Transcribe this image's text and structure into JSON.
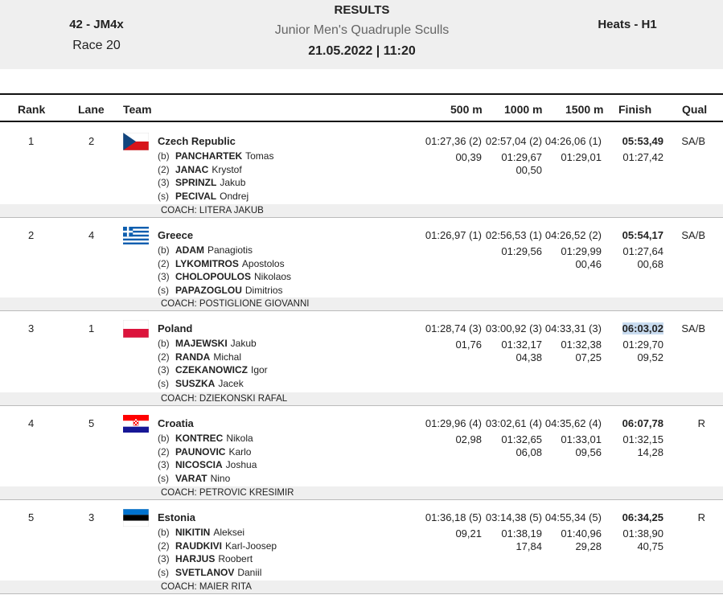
{
  "header": {
    "event_code": "42 - JM4x",
    "race": "Race 20",
    "title": "RESULTS",
    "event_name": "Junior Men's Quadruple Sculls",
    "datetime": "21.05.2022 | 11:20",
    "round": "Heats - H1"
  },
  "columns": {
    "rank": "Rank",
    "lane": "Lane",
    "team": "Team",
    "m500": "500 m",
    "m1000": "1000 m",
    "m1500": "1500 m",
    "finish": "Finish",
    "qual": "Qual"
  },
  "rows": [
    {
      "rank": "1",
      "lane": "2",
      "team": "Czech Republic",
      "flag": "czech-flag",
      "crew": [
        {
          "pos": "(b)",
          "last": "PANCHARTEK",
          "first": "Tomas"
        },
        {
          "pos": "(2)",
          "last": "JANAC",
          "first": "Krystof"
        },
        {
          "pos": "(3)",
          "last": "SPRINZL",
          "first": "Jakub"
        },
        {
          "pos": "(s)",
          "last": "PECIVAL",
          "first": "Ondrej"
        }
      ],
      "m500": [
        "01:27,36 (2)",
        "00,39"
      ],
      "m1000": [
        "02:57,04 (2)",
        "01:29,67",
        "00,50"
      ],
      "m1500": [
        "04:26,06 (1)",
        "01:29,01"
      ],
      "finish": [
        "05:53,49",
        "01:27,42"
      ],
      "qual": "SA/B",
      "coach": "COACH: LITERA JAKUB"
    },
    {
      "rank": "2",
      "lane": "4",
      "team": "Greece",
      "flag": "greece-flag",
      "crew": [
        {
          "pos": "(b)",
          "last": "ADAM",
          "first": "Panagiotis"
        },
        {
          "pos": "(2)",
          "last": "LYKOMITROS",
          "first": "Apostolos"
        },
        {
          "pos": "(3)",
          "last": "CHOLOPOULOS",
          "first": "Nikolaos"
        },
        {
          "pos": "(s)",
          "last": "PAPAZOGLOU",
          "first": "Dimitrios"
        }
      ],
      "m500": [
        "01:26,97 (1)"
      ],
      "m1000": [
        "02:56,53 (1)",
        "01:29,56"
      ],
      "m1500": [
        "04:26,52 (2)",
        "01:29,99",
        "00,46"
      ],
      "finish": [
        "05:54,17",
        "01:27,64",
        "00,68"
      ],
      "qual": "SA/B",
      "coach": "COACH: POSTIGLIONE GIOVANNI"
    },
    {
      "rank": "3",
      "lane": "1",
      "team": "Poland",
      "flag": "poland-flag",
      "crew": [
        {
          "pos": "(b)",
          "last": "MAJEWSKI",
          "first": "Jakub"
        },
        {
          "pos": "(2)",
          "last": "RANDA",
          "first": "Michal"
        },
        {
          "pos": "(3)",
          "last": "CZEKANOWICZ",
          "first": "Igor"
        },
        {
          "pos": "(s)",
          "last": "SUSZKA",
          "first": "Jacek"
        }
      ],
      "m500": [
        "01:28,74 (3)",
        "01,76"
      ],
      "m1000": [
        "03:00,92 (3)",
        "01:32,17",
        "04,38"
      ],
      "m1500": [
        "04:33,31 (3)",
        "01:32,38",
        "07,25"
      ],
      "finish": [
        "06:03,02",
        "01:29,70",
        "09,52"
      ],
      "qual": "SA/B",
      "coach": "COACH: DZIEKONSKI RAFAL"
    },
    {
      "rank": "4",
      "lane": "5",
      "team": "Croatia",
      "flag": "croatia-flag",
      "crew": [
        {
          "pos": "(b)",
          "last": "KONTREC",
          "first": "Nikola"
        },
        {
          "pos": "(2)",
          "last": "PAUNOVIC",
          "first": "Karlo"
        },
        {
          "pos": "(3)",
          "last": "NICOSCIA",
          "first": "Joshua"
        },
        {
          "pos": "(s)",
          "last": "VARAT",
          "first": "Nino"
        }
      ],
      "m500": [
        "01:29,96 (4)",
        "02,98"
      ],
      "m1000": [
        "03:02,61 (4)",
        "01:32,65",
        "06,08"
      ],
      "m1500": [
        "04:35,62 (4)",
        "01:33,01",
        "09,56"
      ],
      "finish": [
        "06:07,78",
        "01:32,15",
        "14,28"
      ],
      "qual": "R",
      "coach": "COACH: PETROVIC KRESIMIR"
    },
    {
      "rank": "5",
      "lane": "3",
      "team": "Estonia",
      "flag": "estonia-flag",
      "crew": [
        {
          "pos": "(b)",
          "last": "NIKITIN",
          "first": "Aleksei"
        },
        {
          "pos": "(2)",
          "last": "RAUDKIVI",
          "first": "Karl-Joosep"
        },
        {
          "pos": "(3)",
          "last": "HARJUS",
          "first": "Roobert"
        },
        {
          "pos": "(s)",
          "last": "SVETLANOV",
          "first": "Daniil"
        }
      ],
      "m500": [
        "01:36,18 (5)",
        "09,21"
      ],
      "m1000": [
        "03:14,38 (5)",
        "01:38,19",
        "17,84"
      ],
      "m1500": [
        "04:55,34 (5)",
        "01:40,96",
        "29,28"
      ],
      "finish": [
        "06:34,25",
        "01:38,90",
        "40,75"
      ],
      "qual": "R",
      "coach": "COACH: MAIER RITA"
    }
  ]
}
